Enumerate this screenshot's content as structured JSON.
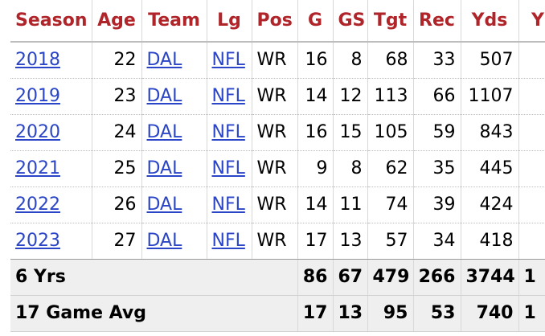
{
  "table": {
    "headers": [
      "Season",
      "Age",
      "Team",
      "Lg",
      "Pos",
      "G",
      "GS",
      "Tgt",
      "Rec",
      "Yds",
      "Y"
    ],
    "rows": [
      {
        "season": "2018",
        "age": "22",
        "team": "DAL",
        "lg": "NFL",
        "pos": "WR",
        "g": "16",
        "gs": "8",
        "tgt": "68",
        "rec": "33",
        "yds": "507",
        "extra": ""
      },
      {
        "season": "2019",
        "age": "23",
        "team": "DAL",
        "lg": "NFL",
        "pos": "WR",
        "g": "14",
        "gs": "12",
        "tgt": "113",
        "rec": "66",
        "yds": "1107",
        "extra": ""
      },
      {
        "season": "2020",
        "age": "24",
        "team": "DAL",
        "lg": "NFL",
        "pos": "WR",
        "g": "16",
        "gs": "15",
        "tgt": "105",
        "rec": "59",
        "yds": "843",
        "extra": ""
      },
      {
        "season": "2021",
        "age": "25",
        "team": "DAL",
        "lg": "NFL",
        "pos": "WR",
        "g": "9",
        "gs": "8",
        "tgt": "62",
        "rec": "35",
        "yds": "445",
        "extra": ""
      },
      {
        "season": "2022",
        "age": "26",
        "team": "DAL",
        "lg": "NFL",
        "pos": "WR",
        "g": "14",
        "gs": "11",
        "tgt": "74",
        "rec": "39",
        "yds": "424",
        "extra": ""
      },
      {
        "season": "2023",
        "age": "27",
        "team": "DAL",
        "lg": "NFL",
        "pos": "WR",
        "g": "17",
        "gs": "13",
        "tgt": "57",
        "rec": "34",
        "yds": "418",
        "extra": ""
      }
    ],
    "footer": [
      {
        "label": "6 Yrs",
        "g": "86",
        "gs": "67",
        "tgt": "479",
        "rec": "266",
        "yds": "3744",
        "extra": "1"
      },
      {
        "label": "17 Game Avg",
        "g": "17",
        "gs": "13",
        "tgt": "95",
        "rec": "53",
        "yds": "740",
        "extra": "1"
      }
    ]
  },
  "colors": {
    "header_text": "#b0252a",
    "link": "#2a45c7",
    "footer_bg": "#efefef"
  }
}
